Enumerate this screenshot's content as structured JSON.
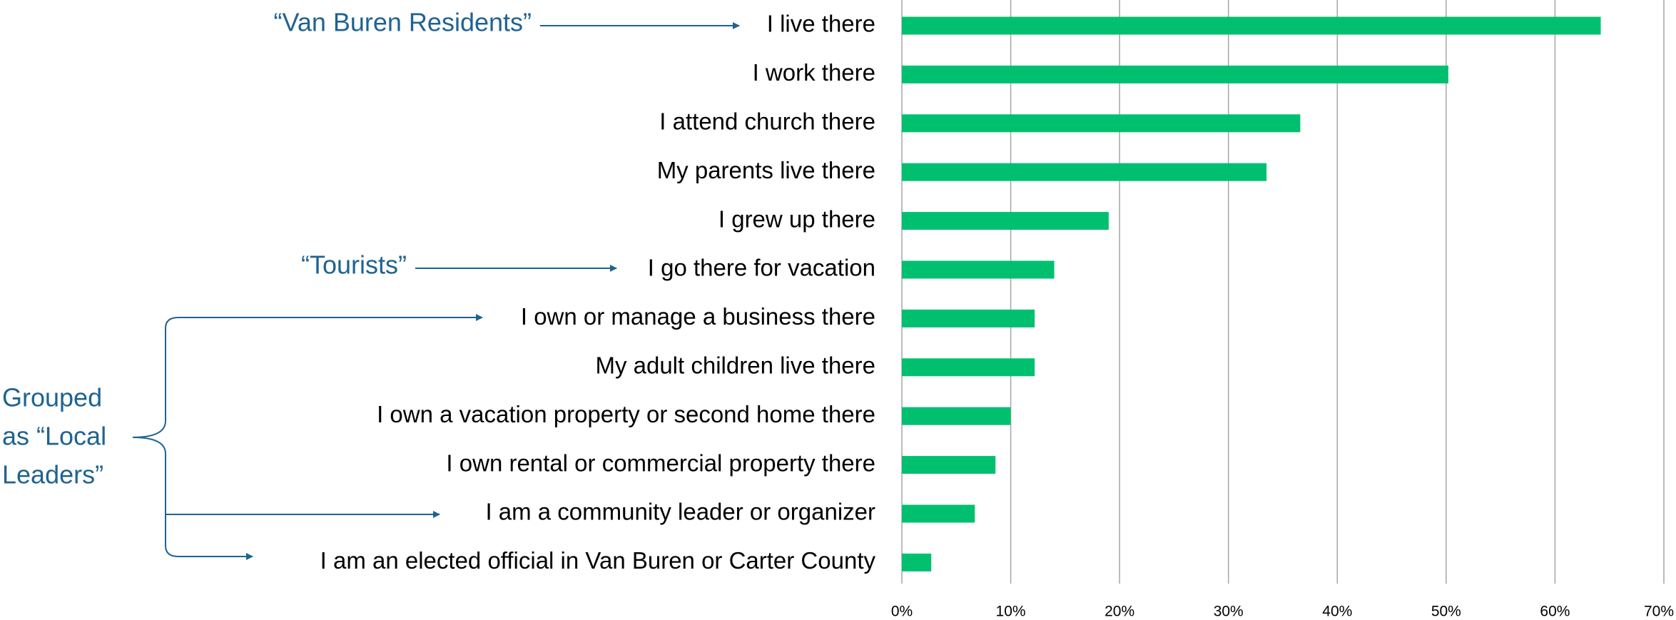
{
  "chart_data": {
    "type": "bar",
    "orientation": "horizontal",
    "categories": [
      "I live there",
      "I work there",
      "I attend church there",
      "My parents live there",
      "I grew up there",
      "I go there for vacation",
      "I own or manage a business there",
      "My adult children live there",
      "I own a vacation property or second home there",
      "I own rental or commercial property there",
      "I am a community leader or organizer",
      "I am an elected official in Van Buren or Carter County"
    ],
    "values": [
      64.2,
      50.2,
      36.6,
      33.5,
      19.0,
      14.0,
      12.2,
      12.2,
      10.0,
      8.6,
      6.7,
      2.7
    ],
    "color": "#00c06f",
    "xlim": [
      0,
      70
    ],
    "xticks": [
      {
        "value": 0,
        "label": "0%"
      },
      {
        "value": 10,
        "label": "10%"
      },
      {
        "value": 20,
        "label": "20%"
      },
      {
        "value": 30,
        "label": "30%"
      },
      {
        "value": 40,
        "label": "40%"
      },
      {
        "value": 50,
        "label": "50%"
      },
      {
        "value": 60,
        "label": "60%"
      },
      {
        "value": 70,
        "label": "70%"
      }
    ],
    "grid": true,
    "annotations": [
      "“Van Buren Residents”",
      "“Tourists”",
      [
        "Grouped",
        "as “Local",
        "Leaders”"
      ]
    ]
  }
}
